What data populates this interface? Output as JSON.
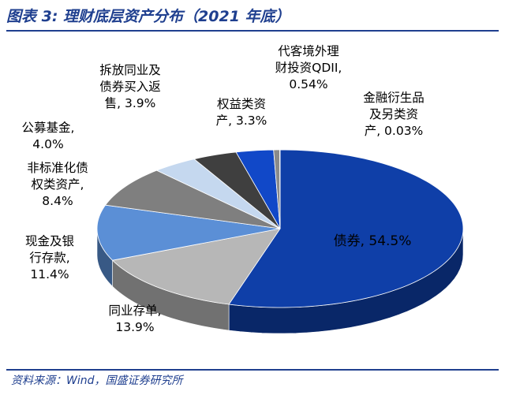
{
  "title": "图表 3:  理财底层资产分布（2021 年底）",
  "source": "资料来源：Wind，国盛证券研究所",
  "chart_data": {
    "type": "pie",
    "title": "图表 3:  理财底层资产分布（2021 年底）",
    "style": "3d",
    "slices": [
      {
        "label": [
          "债券, 54.5%"
        ],
        "value": 54.5,
        "color": "#0f3fa8"
      },
      {
        "label": [
          "同业存单,",
          "13.9%"
        ],
        "value": 13.9,
        "color": "#b7b7b7"
      },
      {
        "label": [
          "现金及银",
          "行存款,",
          "11.4%"
        ],
        "value": 11.4,
        "color": "#5b8fd6"
      },
      {
        "label": [
          "非标准化债",
          "权类资产,",
          "8.4%"
        ],
        "value": 8.4,
        "color": "#7f7f7f"
      },
      {
        "label": [
          "公募基金,",
          "4.0%"
        ],
        "value": 4.0,
        "color": "#c5d8ef"
      },
      {
        "label": [
          "拆放同业及",
          "债券买入返",
          "售, 3.9%"
        ],
        "value": 3.9,
        "color": "#3f3f3f"
      },
      {
        "label": [
          "权益类资",
          "产, 3.3%"
        ],
        "value": 3.3,
        "color": "#1148c8"
      },
      {
        "label": [
          "代客境外理",
          "财投资QDII,",
          "0.54%"
        ],
        "value": 0.54,
        "color": "#8a8a8a"
      },
      {
        "label": [
          "金融衍生品",
          "及另类资",
          "产, 0.03%"
        ],
        "value": 0.03,
        "color": "#b0b0b0"
      }
    ]
  }
}
